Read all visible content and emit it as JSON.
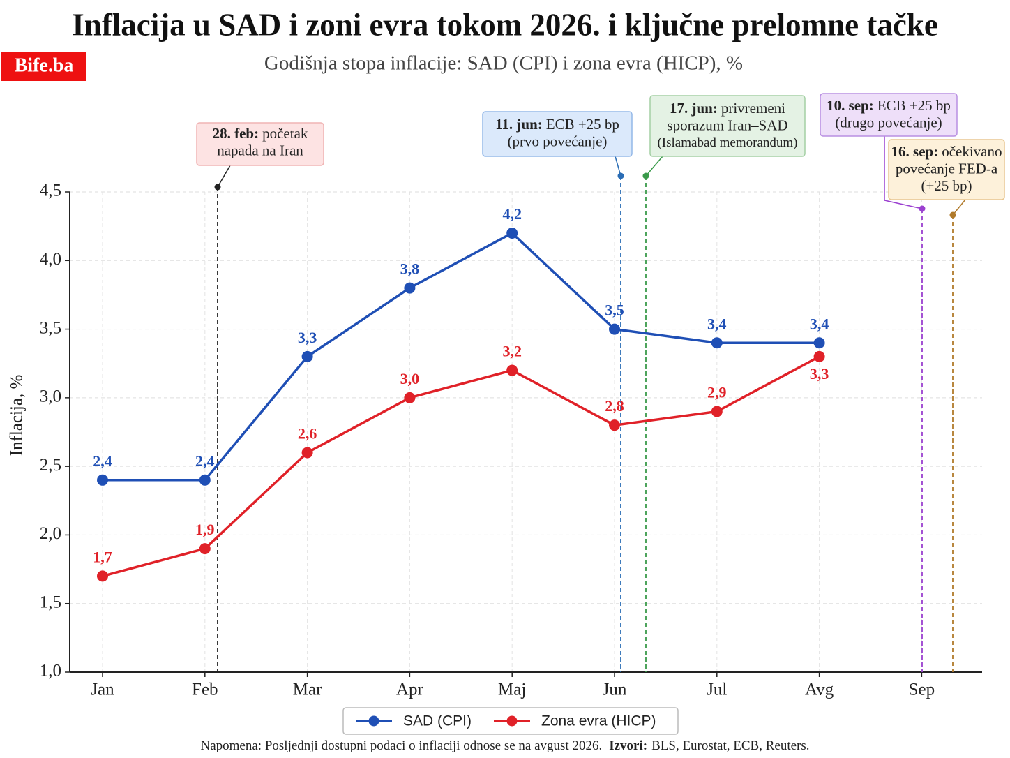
{
  "chart_data": {
    "type": "line",
    "title": "Inflacija u SAD i zoni evra tokom 2026. i ključne prelomne tačke",
    "subtitle": "Godišnja stopa inflacije: SAD (CPI) i zona evra (HICP), %",
    "brand": "Bife.ba",
    "y_label": "Inflacija, %",
    "categories": [
      "Jan",
      "Feb",
      "Mar",
      "Apr",
      "Maj",
      "Jun",
      "Jul",
      "Avg",
      "Sep"
    ],
    "series": [
      {
        "name": "SAD (CPI)",
        "color": "#1f4fb5",
        "values": [
          2.4,
          2.4,
          3.3,
          3.8,
          4.2,
          3.5,
          3.4,
          3.4,
          null
        ],
        "value_labels": [
          "2,4",
          "2,4",
          "3,3",
          "3,8",
          "4,2",
          "3,5",
          "3,4",
          "3,4",
          null
        ]
      },
      {
        "name": "Zona evra (HICP)",
        "color": "#e02128",
        "values": [
          1.7,
          1.9,
          2.6,
          3.0,
          3.2,
          2.8,
          2.9,
          3.3,
          null
        ],
        "value_labels": [
          "1,7",
          "1,9",
          "2,6",
          "3,0",
          "3,2",
          "2,8",
          "2,9",
          "3,3",
          null
        ]
      }
    ],
    "ylim": [
      1.0,
      4.5
    ],
    "yticks": [
      {
        "value": 1.0,
        "label": "1,0"
      },
      {
        "value": 1.5,
        "label": "1,5"
      },
      {
        "value": 2.0,
        "label": "2,0"
      },
      {
        "value": 2.5,
        "label": "2,5"
      },
      {
        "value": 3.0,
        "label": "3,0"
      },
      {
        "value": 3.5,
        "label": "3,5"
      },
      {
        "value": 4.0,
        "label": "4,0"
      },
      {
        "value": 4.5,
        "label": "4,5"
      }
    ],
    "grid": true,
    "legend": "bottom",
    "annotations": [
      {
        "bold": "28. feb:",
        "lines": [
          "početak",
          "napada na Iran"
        ],
        "color": "#222222",
        "fill": "#fde3e3",
        "border": "#f0b4b4"
      },
      {
        "bold": "11. jun:",
        "lines": [
          "ECB +25 bp",
          "(prvo povećanje)"
        ],
        "color": "#2a6db5",
        "fill": "#dbe9fb",
        "border": "#93b8e8"
      },
      {
        "bold": "17. jun:",
        "lines": [
          "privremeni",
          "sporazum Iran–SAD",
          "(Islamabad memorandum)"
        ],
        "color": "#3a9a4a",
        "fill": "#e4f2e4",
        "border": "#a3cfa3"
      },
      {
        "bold": "10. sep:",
        "lines": [
          "ECB +25 bp",
          "(drugo povećanje)"
        ],
        "color": "#9b40d0",
        "fill": "#eedff9",
        "border": "#b98fe2"
      },
      {
        "bold": "16. sep:",
        "lines": [
          "očekivano",
          "povećanje FED-a",
          "(+25 bp)"
        ],
        "color": "#b07a2a",
        "fill": "#fdf1da",
        "border": "#e8c690"
      }
    ],
    "note": {
      "text": "Napomena: Posljednji dostupni podaci o inflaciji odnose se na avgust 2026.",
      "sources_label": "Izvori:",
      "sources": "BLS, Eurostat, ECB, Reuters."
    }
  }
}
